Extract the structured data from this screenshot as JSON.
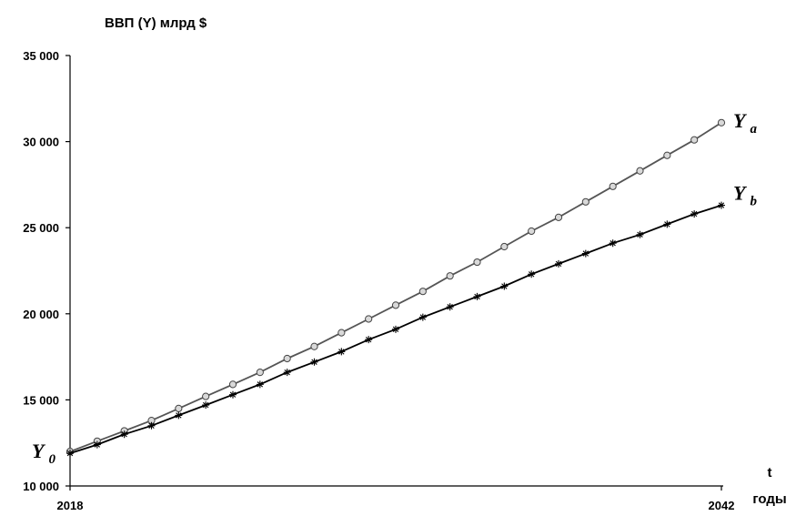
{
  "chart_data": {
    "type": "line",
    "ylabel": "ВВП (Y) млрд $",
    "xlabel_top": "t",
    "xlabel_bottom": "годы",
    "xlim": [
      2018,
      2042
    ],
    "ylim": [
      10000,
      35000
    ],
    "x_tick_labels": [
      "2018",
      "2042"
    ],
    "y_ticks": [
      10000,
      15000,
      20000,
      25000,
      30000,
      35000
    ],
    "y_tick_labels": [
      "10 000",
      "15 000",
      "20 000",
      "25 000",
      "30 000",
      "35 000"
    ],
    "x": [
      2018,
      2019,
      2020,
      2021,
      2022,
      2023,
      2024,
      2025,
      2026,
      2027,
      2028,
      2029,
      2030,
      2031,
      2032,
      2033,
      2034,
      2035,
      2036,
      2037,
      2038,
      2039,
      2040,
      2041,
      2042
    ],
    "start_label": {
      "main": "Y",
      "sub": "0"
    },
    "series": [
      {
        "name": "Y_a",
        "label_main": "Y",
        "label_sub": "a",
        "marker": "circle",
        "color": "#555555",
        "values": [
          12000,
          12600,
          13200,
          13800,
          14500,
          15200,
          15900,
          16600,
          17400,
          18100,
          18900,
          19700,
          20500,
          21300,
          22200,
          23000,
          23900,
          24800,
          25600,
          26500,
          27400,
          28300,
          29200,
          30100,
          31100
        ]
      },
      {
        "name": "Y_b",
        "label_main": "Y",
        "label_sub": "b",
        "marker": "star",
        "color": "#000000",
        "values": [
          11900,
          12400,
          13000,
          13500,
          14100,
          14700,
          15300,
          15900,
          16600,
          17200,
          17800,
          18500,
          19100,
          19800,
          20400,
          21000,
          21600,
          22300,
          22900,
          23500,
          24100,
          24600,
          25200,
          25800,
          26300
        ]
      }
    ]
  }
}
